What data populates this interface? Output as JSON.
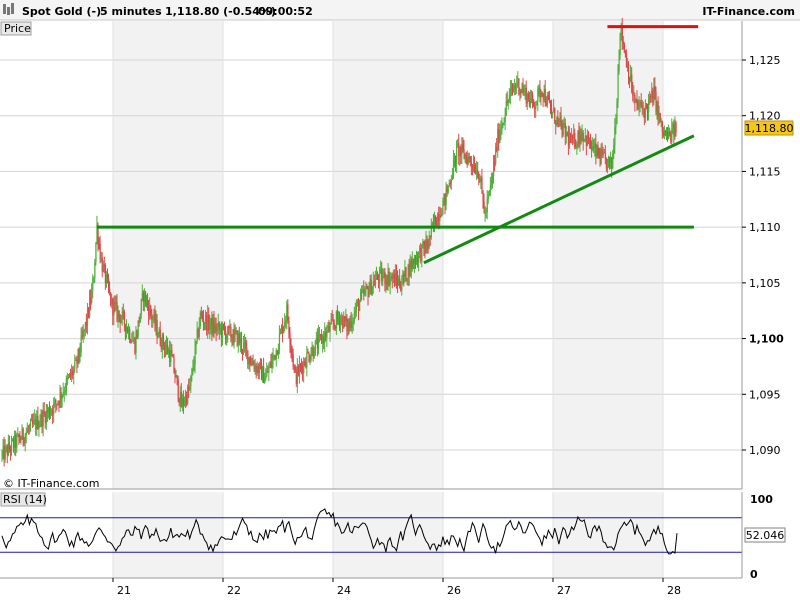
{
  "header": {
    "instrument": "Spot Gold (-)",
    "interval": "5 minutes",
    "price_change": "1,118.80 (-0.54%)",
    "time": "09:00:52",
    "brand": "IT-Finance.com"
  },
  "price_panel": {
    "label": "Price",
    "copyright": "© IT-Finance.com",
    "current_price_badge": "1,118.80"
  },
  "rsi_panel": {
    "label": "RSI (14)",
    "current_value_badge": "52.046"
  },
  "colors": {
    "up_candle": "#4fae3a",
    "down_candle": "#d9474a",
    "trendline": "#128a12",
    "resistance_line": "#e01010",
    "rsi_line": "#000000",
    "rsi_bands": "#1a1aa0",
    "badge_price": "#f5c518",
    "shaded_day": "#f2f2f2"
  },
  "chart_data": [
    {
      "type": "candlestick",
      "title": "Spot Gold (-)",
      "interval": "5 minutes",
      "x_labels": [
        "21",
        "22",
        "24",
        "26",
        "27",
        "28"
      ],
      "y_ticks": [
        "1,090",
        "1,095",
        "1,100",
        "1,105",
        "1,110",
        "1,115",
        "1,120",
        "1,125"
      ],
      "y_bold_tick": "1,100",
      "ylim": [
        1086.5,
        1128.5
      ],
      "last_price": 1118.8,
      "grid": true,
      "series_path": [
        [
          0,
          1089.5
        ],
        [
          2.5,
          1094.0
        ],
        [
          3.5,
          1097.5
        ],
        [
          4.0,
          1101.5
        ],
        [
          4.3,
          1104.5
        ],
        [
          4.5,
          1110.0
        ],
        [
          4.7,
          1107.0
        ],
        [
          5.2,
          1103.0
        ],
        [
          5.8,
          1101.5
        ],
        [
          6.3,
          1099.5
        ],
        [
          6.7,
          1104.0
        ],
        [
          7.0,
          1102.5
        ],
        [
          7.5,
          1100.0
        ],
        [
          8.0,
          1098.5
        ],
        [
          8.5,
          1094.0
        ],
        [
          8.9,
          1095.5
        ],
        [
          9.4,
          1102.0
        ],
        [
          10.0,
          1101.0
        ],
        [
          10.6,
          1100.5
        ],
        [
          11.2,
          1100.0
        ],
        [
          11.8,
          1098.0
        ],
        [
          12.5,
          1096.5
        ],
        [
          13.0,
          1099.0
        ],
        [
          13.5,
          1102.5
        ],
        [
          13.9,
          1096.5
        ],
        [
          14.5,
          1098.5
        ],
        [
          15.4,
          1100.5
        ],
        [
          16.0,
          1102.0
        ],
        [
          16.4,
          1101.0
        ],
        [
          17.0,
          1103.5
        ],
        [
          17.8,
          1105.5
        ],
        [
          18.4,
          1105.5
        ],
        [
          18.9,
          1105.0
        ],
        [
          19.5,
          1107.0
        ],
        [
          20.2,
          1108.5
        ],
        [
          20.5,
          1110.5
        ],
        [
          21.0,
          1112.5
        ],
        [
          21.6,
          1117.0
        ],
        [
          22.2,
          1116.0
        ],
        [
          22.6,
          1115.0
        ],
        [
          22.9,
          1111.0
        ],
        [
          23.2,
          1114.0
        ],
        [
          23.5,
          1118.0
        ],
        [
          24.0,
          1121.5
        ],
        [
          24.4,
          1123.0
        ],
        [
          24.8,
          1122.0
        ],
        [
          25.2,
          1121.0
        ],
        [
          25.6,
          1122.5
        ],
        [
          26.0,
          1120.5
        ],
        [
          26.5,
          1119.0
        ],
        [
          27.0,
          1117.5
        ],
        [
          27.5,
          1118.5
        ],
        [
          28.0,
          1117.0
        ],
        [
          28.5,
          1116.0
        ],
        [
          28.9,
          1115.5
        ],
        [
          29.1,
          1120.0
        ],
        [
          29.3,
          1128.0
        ],
        [
          29.6,
          1125.0
        ],
        [
          30.0,
          1121.0
        ],
        [
          30.5,
          1120.5
        ],
        [
          30.9,
          1122.0
        ],
        [
          31.3,
          1118.5
        ],
        [
          31.6,
          1118.0
        ],
        [
          32.0,
          1119.0
        ]
      ],
      "annotations": [
        {
          "type": "horizontal_line",
          "color": "green",
          "y": 1110,
          "x_from": 4.5,
          "x_to": 32.8
        },
        {
          "type": "horizontal_line",
          "color": "red",
          "y": 1128,
          "x_from": 28.7,
          "x_to": 33.0
        },
        {
          "type": "trendline",
          "color": "green",
          "x1": 20.0,
          "y1": 1106.8,
          "x2": 32.8,
          "y2": 1118.2
        }
      ]
    },
    {
      "type": "line",
      "title": "RSI (14)",
      "y_ticks": [
        "100",
        "0"
      ],
      "ylim": [
        0,
        100
      ],
      "bands": [
        70,
        30
      ],
      "last_value": 52.046,
      "x_labels": [
        "21",
        "22",
        "24",
        "26",
        "27",
        "28"
      ]
    }
  ]
}
